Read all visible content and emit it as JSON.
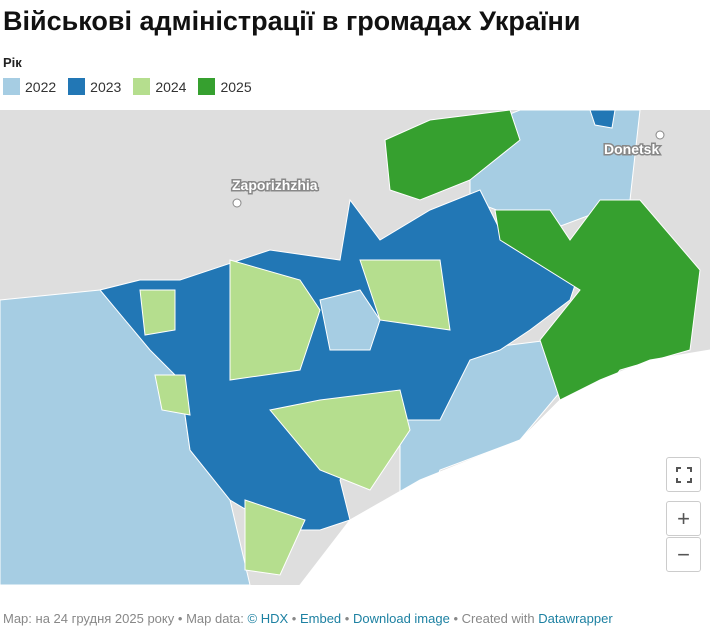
{
  "header": {
    "title": "Військові адміністрації в громадах України"
  },
  "legend": {
    "title": "Рік",
    "items": [
      {
        "label": "2022",
        "color": "#a6cde3"
      },
      {
        "label": "2023",
        "color": "#2277b5"
      },
      {
        "label": "2024",
        "color": "#b5de8e"
      },
      {
        "label": "2025",
        "color": "#36a02f"
      }
    ]
  },
  "map": {
    "cities": [
      "Zaporizhzhia",
      "Donetsk"
    ],
    "controls": [
      "+",
      "−"
    ]
  },
  "footer": {
    "separator": "•",
    "map_note": "Map: на 24 грудня 2025 року",
    "data_label": "Map data:",
    "hdx": "© HDX",
    "embed": "Embed",
    "download": "Download image",
    "created": "Created with",
    "datawrapper": "Datawrapper"
  }
}
